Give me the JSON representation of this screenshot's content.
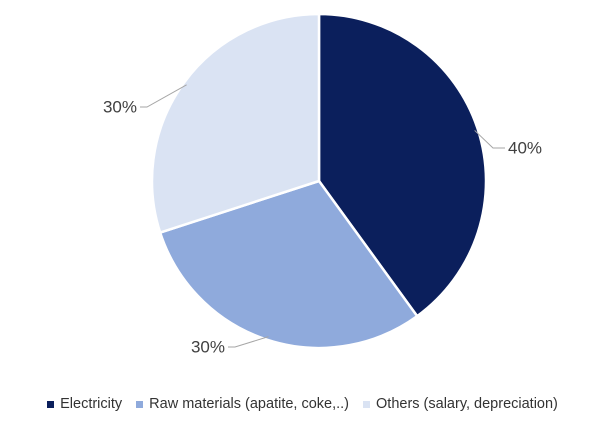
{
  "chart_data": {
    "type": "pie",
    "title": "",
    "slices": [
      {
        "label": "Electricity",
        "value": 40,
        "display": "40%",
        "color": "#0b1f5c"
      },
      {
        "label": "Raw materials (apatite, coke,..)",
        "value": 30,
        "display": "30%",
        "color": "#8faadc"
      },
      {
        "label": "Others (salary, depreciation)",
        "value": 30,
        "display": "30%",
        "color": "#dae3f3"
      }
    ],
    "legend_position": "bottom",
    "start_angle": "12 o'clock",
    "direction": "clockwise"
  }
}
